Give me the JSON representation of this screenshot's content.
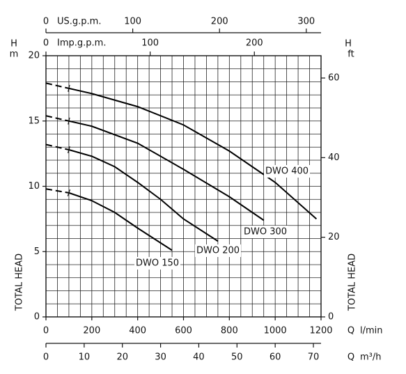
{
  "chart_data": {
    "type": "line",
    "ylabel_top": "H",
    "yunit": "m",
    "ylabel": "TOTAL HEAD",
    "y2label_top": "H",
    "y2unit": "ft",
    "y2label": "TOTAL HEAD",
    "xlabel": "Q",
    "xunit": "l/min",
    "xlim": [
      0,
      1200
    ],
    "xticks": [
      0,
      200,
      400,
      600,
      800,
      1000,
      1200
    ],
    "x_minor_ticks": [
      0,
      50,
      100,
      150,
      200,
      250,
      300,
      350,
      400,
      450,
      500,
      550,
      600,
      650,
      700,
      750,
      800,
      850,
      900,
      950,
      1000,
      1050,
      1100,
      1150,
      1200
    ],
    "ylim": [
      0,
      20
    ],
    "yticks": [
      0,
      5,
      10,
      15,
      20
    ],
    "y_minor_ticks": [
      0,
      1,
      2,
      3,
      4,
      5,
      6,
      7,
      8,
      9,
      10,
      11,
      12,
      13,
      14,
      15,
      16,
      17,
      18,
      19,
      20
    ],
    "y2lim": [
      0,
      65.6
    ],
    "y2ticks": [
      0,
      20,
      40,
      60
    ],
    "grid": true,
    "dashed_first_segment": true,
    "top_axes": [
      {
        "label": "US.g.p.m.",
        "lim": [
          0,
          317
        ],
        "ticks": [
          0,
          100,
          200,
          300
        ]
      },
      {
        "label": "Imp.g.p.m.",
        "lim": [
          0,
          264
        ],
        "ticks": [
          0,
          100,
          200
        ]
      }
    ],
    "bottom_axis2": {
      "name": "Q",
      "unit": "m³/h",
      "lim": [
        0,
        72
      ],
      "ticks": [
        0,
        10,
        20,
        30,
        40,
        50,
        60,
        70
      ]
    },
    "series": [
      {
        "name": "DWO 400",
        "color": "#000000",
        "x": [
          0,
          100,
          200,
          400,
          600,
          800,
          1000,
          1180
        ],
        "values": [
          17.9,
          17.5,
          17.1,
          16.1,
          14.7,
          12.7,
          10.3,
          7.5
        ]
      },
      {
        "name": "DWO 300",
        "color": "#000000",
        "x": [
          0,
          100,
          200,
          400,
          600,
          800,
          950
        ],
        "values": [
          15.4,
          15.0,
          14.6,
          13.3,
          11.3,
          9.2,
          7.4
        ]
      },
      {
        "name": "DWO 200",
        "color": "#000000",
        "x": [
          0,
          100,
          200,
          300,
          400,
          500,
          600,
          750
        ],
        "values": [
          13.2,
          12.8,
          12.3,
          11.5,
          10.3,
          9.0,
          7.5,
          5.8
        ]
      },
      {
        "name": "DWO 150",
        "color": "#000000",
        "x": [
          0,
          100,
          200,
          300,
          400,
          550
        ],
        "values": [
          9.8,
          9.5,
          8.9,
          8.0,
          6.8,
          5.1
        ]
      }
    ]
  }
}
